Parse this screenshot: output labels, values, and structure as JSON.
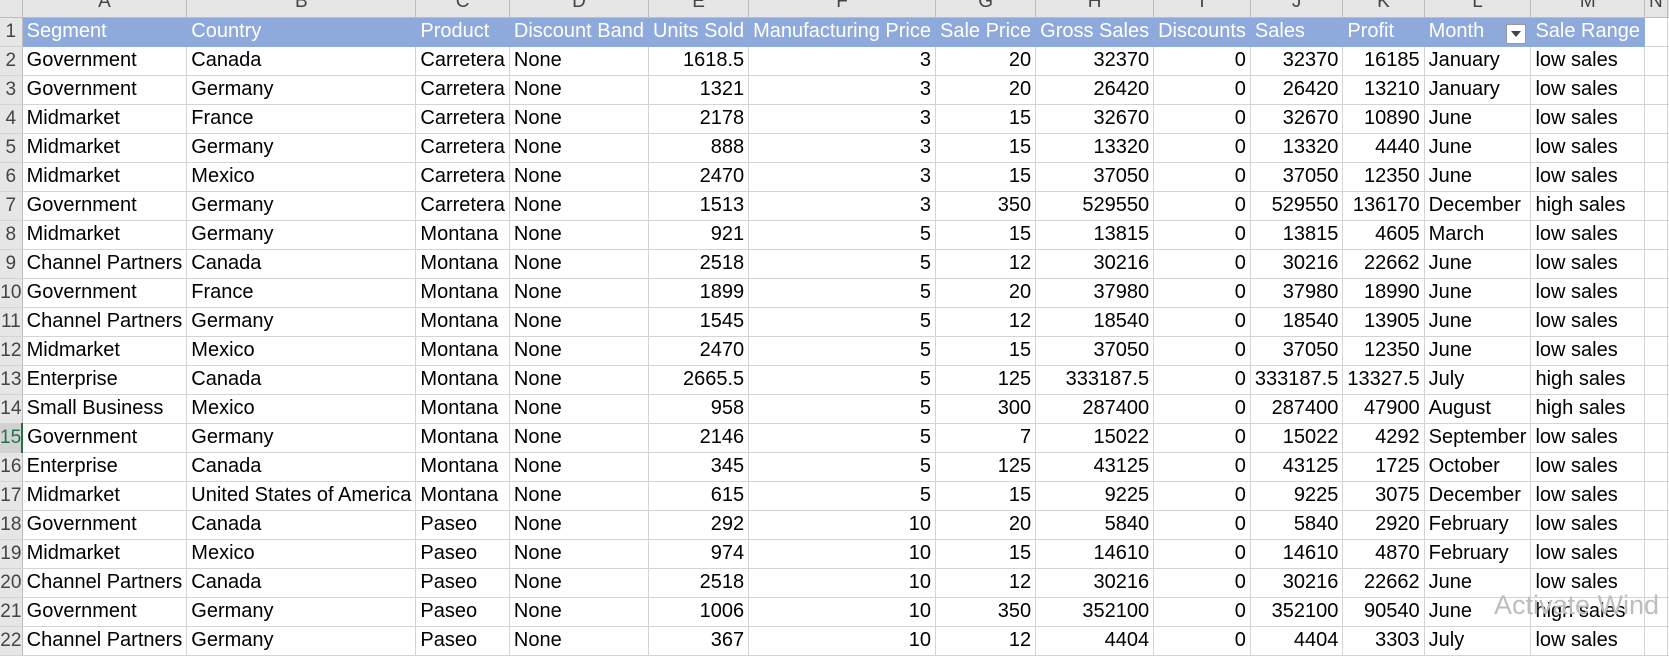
{
  "columns": [
    "A",
    "B",
    "C",
    "D",
    "E",
    "F",
    "G",
    "H",
    "I",
    "J",
    "K",
    "L",
    "M",
    "N"
  ],
  "headers": [
    "Segment",
    "Country",
    "Product",
    "Discount Band",
    "Units Sold",
    "Manufacturing Price",
    "Sale Price",
    "Gross Sales",
    "Discounts",
    "Sales",
    "Profit",
    "Month",
    "Sale Range"
  ],
  "filter_icon": "dropdown-filter-icon",
  "active_row": "15",
  "rows": [
    {
      "n": "2",
      "c": [
        "Government",
        "Canada",
        "Carretera",
        "None",
        "1618.5",
        "3",
        "20",
        "32370",
        "0",
        "32370",
        "16185",
        "January",
        "low sales"
      ]
    },
    {
      "n": "3",
      "c": [
        "Government",
        "Germany",
        "Carretera",
        "None",
        "1321",
        "3",
        "20",
        "26420",
        "0",
        "26420",
        "13210",
        "January",
        "low sales"
      ]
    },
    {
      "n": "4",
      "c": [
        "Midmarket",
        "France",
        "Carretera",
        "None",
        "2178",
        "3",
        "15",
        "32670",
        "0",
        "32670",
        "10890",
        "June",
        "low sales"
      ]
    },
    {
      "n": "5",
      "c": [
        "Midmarket",
        "Germany",
        "Carretera",
        "None",
        "888",
        "3",
        "15",
        "13320",
        "0",
        "13320",
        "4440",
        "June",
        "low sales"
      ]
    },
    {
      "n": "6",
      "c": [
        "Midmarket",
        "Mexico",
        "Carretera",
        "None",
        "2470",
        "3",
        "15",
        "37050",
        "0",
        "37050",
        "12350",
        "June",
        "low sales"
      ]
    },
    {
      "n": "7",
      "c": [
        "Government",
        "Germany",
        "Carretera",
        "None",
        "1513",
        "3",
        "350",
        "529550",
        "0",
        "529550",
        "136170",
        "December",
        "high sales"
      ]
    },
    {
      "n": "8",
      "c": [
        "Midmarket",
        "Germany",
        "Montana",
        "None",
        "921",
        "5",
        "15",
        "13815",
        "0",
        "13815",
        "4605",
        "March",
        "low sales"
      ]
    },
    {
      "n": "9",
      "c": [
        "Channel Partners",
        "Canada",
        "Montana",
        "None",
        "2518",
        "5",
        "12",
        "30216",
        "0",
        "30216",
        "22662",
        "June",
        "low sales"
      ]
    },
    {
      "n": "10",
      "c": [
        "Government",
        "France",
        "Montana",
        "None",
        "1899",
        "5",
        "20",
        "37980",
        "0",
        "37980",
        "18990",
        "June",
        "low sales"
      ]
    },
    {
      "n": "11",
      "c": [
        "Channel Partners",
        "Germany",
        "Montana",
        "None",
        "1545",
        "5",
        "12",
        "18540",
        "0",
        "18540",
        "13905",
        "June",
        "low sales"
      ]
    },
    {
      "n": "12",
      "c": [
        "Midmarket",
        "Mexico",
        "Montana",
        "None",
        "2470",
        "5",
        "15",
        "37050",
        "0",
        "37050",
        "12350",
        "June",
        "low sales"
      ]
    },
    {
      "n": "13",
      "c": [
        "Enterprise",
        "Canada",
        "Montana",
        "None",
        "2665.5",
        "5",
        "125",
        "333187.5",
        "0",
        "333187.5",
        "13327.5",
        "July",
        "high sales"
      ]
    },
    {
      "n": "14",
      "c": [
        "Small Business",
        "Mexico",
        "Montana",
        "None",
        "958",
        "5",
        "300",
        "287400",
        "0",
        "287400",
        "47900",
        "August",
        "high sales"
      ]
    },
    {
      "n": "15",
      "c": [
        "Government",
        "Germany",
        "Montana",
        "None",
        "2146",
        "5",
        "7",
        "15022",
        "0",
        "15022",
        "4292",
        "September",
        "low sales"
      ]
    },
    {
      "n": "16",
      "c": [
        "Enterprise",
        "Canada",
        "Montana",
        "None",
        "345",
        "5",
        "125",
        "43125",
        "0",
        "43125",
        "1725",
        "October",
        "low sales"
      ]
    },
    {
      "n": "17",
      "c": [
        "Midmarket",
        "United States of America",
        "Montana",
        "None",
        "615",
        "5",
        "15",
        "9225",
        "0",
        "9225",
        "3075",
        "December",
        "low sales"
      ]
    },
    {
      "n": "18",
      "c": [
        "Government",
        "Canada",
        "Paseo",
        "None",
        "292",
        "10",
        "20",
        "5840",
        "0",
        "5840",
        "2920",
        "February",
        "low sales"
      ]
    },
    {
      "n": "19",
      "c": [
        "Midmarket",
        "Mexico",
        "Paseo",
        "None",
        "974",
        "10",
        "15",
        "14610",
        "0",
        "14610",
        "4870",
        "February",
        "low sales"
      ]
    },
    {
      "n": "20",
      "c": [
        "Channel Partners",
        "Canada",
        "Paseo",
        "None",
        "2518",
        "10",
        "12",
        "30216",
        "0",
        "30216",
        "22662",
        "June",
        "low sales"
      ]
    },
    {
      "n": "21",
      "c": [
        "Government",
        "Germany",
        "Paseo",
        "None",
        "1006",
        "10",
        "350",
        "352100",
        "0",
        "352100",
        "90540",
        "June",
        "high sales"
      ]
    },
    {
      "n": "22",
      "c": [
        "Channel Partners",
        "Germany",
        "Paseo",
        "None",
        "367",
        "10",
        "12",
        "4404",
        "0",
        "4404",
        "3303",
        "July",
        "low sales"
      ]
    }
  ],
  "watermark": "Activate Wind"
}
